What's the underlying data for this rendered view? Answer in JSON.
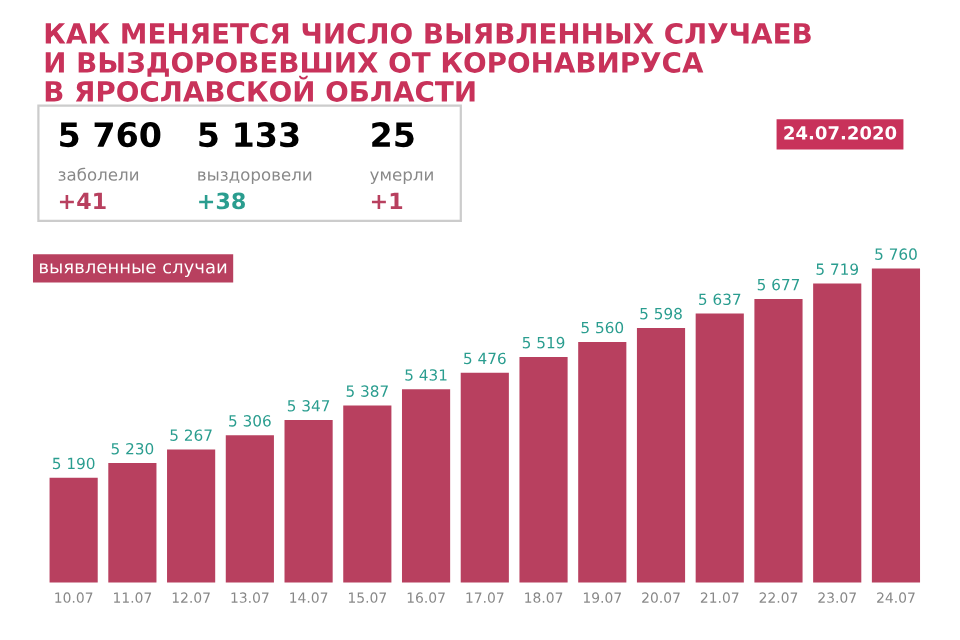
{
  "chart_data": {
    "type": "bar",
    "title": "КАК МЕНЯЕТСЯ ЧИСЛО ВЫЯВЛЕННЫХ СЛУЧАЕВ\nИ ВЫЗДОРОВЕВШИХ ОТ КОРОНАВИРУСА\nВ ЯРОСЛАВСКОЙ ОБЛАСТИ",
    "subtitle": "24.07.2020",
    "annotations": [
      "5 760",
      "заболели",
      "+41",
      "5 133",
      "выздоровели",
      "+38",
      "25",
      "умерли",
      "+1"
    ],
    "categories": [
      "10.07",
      "11.07",
      "12.07",
      "13.07",
      "14.07",
      "15.07",
      "16.07",
      "17.07",
      "18.07",
      "19.07",
      "20.07",
      "21.07",
      "22.07",
      "23.07",
      "24.07"
    ],
    "series": [
      {
        "name": "выявленные случаи",
        "color": "#b8405f",
        "values": [
          5190,
          5230,
          5267,
          5306,
          5347,
          5387,
          5431,
          5476,
          5519,
          5560,
          5598,
          5637,
          5677,
          5719,
          5760
        ]
      }
    ],
    "data_labels": true,
    "tick_labels": "x",
    "grid": false,
    "legend": "top left"
  }
}
